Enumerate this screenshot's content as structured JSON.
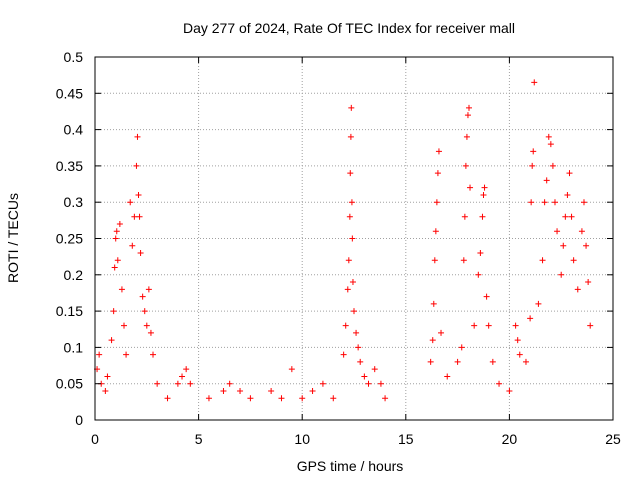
{
  "chart_data": {
    "type": "scatter",
    "title": "Day 277 of 2024, Rate Of TEC Index for receiver mall",
    "xlabel": "GPS time / hours",
    "ylabel": "ROTI / TECUs",
    "xlim": [
      0,
      25
    ],
    "ylim": [
      0,
      0.5
    ],
    "x_ticks": [
      0,
      5,
      10,
      15,
      20,
      25
    ],
    "x_tick_labels": [
      "0",
      "5",
      "10",
      "15",
      "20",
      "25"
    ],
    "y_ticks": [
      0,
      0.05,
      0.1,
      0.15,
      0.2,
      0.25,
      0.3,
      0.35,
      0.4,
      0.45,
      0.5
    ],
    "y_tick_labels": [
      "0",
      "0.05",
      "0.1",
      "0.15",
      "0.2",
      "0.25",
      "0.3",
      "0.35",
      "0.4",
      "0.45",
      "0.5"
    ],
    "grid": true,
    "marker": "+",
    "color": "#ff0000",
    "series": [
      {
        "name": "ROTI",
        "points": [
          [
            0.1,
            0.07
          ],
          [
            0.2,
            0.09
          ],
          [
            0.3,
            0.05
          ],
          [
            0.5,
            0.04
          ],
          [
            0.6,
            0.06
          ],
          [
            0.8,
            0.11
          ],
          [
            0.9,
            0.15
          ],
          [
            0.95,
            0.21
          ],
          [
            1.0,
            0.25
          ],
          [
            1.05,
            0.26
          ],
          [
            1.1,
            0.22
          ],
          [
            1.2,
            0.27
          ],
          [
            1.3,
            0.18
          ],
          [
            1.4,
            0.13
          ],
          [
            1.5,
            0.09
          ],
          [
            1.7,
            0.3
          ],
          [
            1.8,
            0.24
          ],
          [
            1.9,
            0.28
          ],
          [
            2.0,
            0.35
          ],
          [
            2.05,
            0.39
          ],
          [
            2.1,
            0.31
          ],
          [
            2.15,
            0.28
          ],
          [
            2.2,
            0.23
          ],
          [
            2.3,
            0.17
          ],
          [
            2.4,
            0.15
          ],
          [
            2.5,
            0.13
          ],
          [
            2.6,
            0.18
          ],
          [
            2.7,
            0.12
          ],
          [
            2.8,
            0.09
          ],
          [
            3.0,
            0.05
          ],
          [
            3.5,
            0.03
          ],
          [
            4.0,
            0.05
          ],
          [
            4.2,
            0.06
          ],
          [
            4.4,
            0.07
          ],
          [
            4.6,
            0.05
          ],
          [
            5.5,
            0.03
          ],
          [
            6.2,
            0.04
          ],
          [
            6.5,
            0.05
          ],
          [
            7.0,
            0.04
          ],
          [
            7.5,
            0.03
          ],
          [
            8.5,
            0.04
          ],
          [
            9.0,
            0.03
          ],
          [
            9.5,
            0.07
          ],
          [
            10.0,
            0.03
          ],
          [
            10.5,
            0.04
          ],
          [
            11.0,
            0.05
          ],
          [
            11.5,
            0.03
          ],
          [
            12.0,
            0.09
          ],
          [
            12.1,
            0.13
          ],
          [
            12.2,
            0.18
          ],
          [
            12.25,
            0.22
          ],
          [
            12.3,
            0.28
          ],
          [
            12.32,
            0.34
          ],
          [
            12.35,
            0.39
          ],
          [
            12.37,
            0.43
          ],
          [
            12.4,
            0.3
          ],
          [
            12.42,
            0.25
          ],
          [
            12.45,
            0.19
          ],
          [
            12.5,
            0.15
          ],
          [
            12.6,
            0.12
          ],
          [
            12.7,
            0.1
          ],
          [
            12.8,
            0.08
          ],
          [
            13.0,
            0.06
          ],
          [
            13.2,
            0.05
          ],
          [
            13.5,
            0.07
          ],
          [
            13.8,
            0.05
          ],
          [
            14.0,
            0.03
          ],
          [
            16.2,
            0.08
          ],
          [
            16.3,
            0.11
          ],
          [
            16.35,
            0.16
          ],
          [
            16.4,
            0.22
          ],
          [
            16.45,
            0.26
          ],
          [
            16.5,
            0.3
          ],
          [
            16.55,
            0.34
          ],
          [
            16.6,
            0.37
          ],
          [
            16.7,
            0.12
          ],
          [
            17.0,
            0.06
          ],
          [
            17.5,
            0.08
          ],
          [
            17.7,
            0.1
          ],
          [
            17.8,
            0.22
          ],
          [
            17.85,
            0.28
          ],
          [
            17.9,
            0.35
          ],
          [
            17.95,
            0.39
          ],
          [
            18.0,
            0.42
          ],
          [
            18.05,
            0.43
          ],
          [
            18.1,
            0.32
          ],
          [
            18.3,
            0.13
          ],
          [
            18.5,
            0.2
          ],
          [
            18.6,
            0.23
          ],
          [
            18.7,
            0.28
          ],
          [
            18.75,
            0.31
          ],
          [
            18.8,
            0.32
          ],
          [
            18.9,
            0.17
          ],
          [
            19.0,
            0.13
          ],
          [
            19.2,
            0.08
          ],
          [
            19.5,
            0.05
          ],
          [
            20.0,
            0.04
          ],
          [
            20.3,
            0.13
          ],
          [
            20.4,
            0.11
          ],
          [
            20.5,
            0.09
          ],
          [
            20.8,
            0.08
          ],
          [
            21.0,
            0.14
          ],
          [
            21.05,
            0.3
          ],
          [
            21.1,
            0.35
          ],
          [
            21.15,
            0.37
          ],
          [
            21.2,
            0.465
          ],
          [
            21.4,
            0.16
          ],
          [
            21.6,
            0.22
          ],
          [
            21.7,
            0.3
          ],
          [
            21.8,
            0.33
          ],
          [
            21.9,
            0.39
          ],
          [
            22.0,
            0.38
          ],
          [
            22.1,
            0.35
          ],
          [
            22.2,
            0.3
          ],
          [
            22.3,
            0.26
          ],
          [
            22.5,
            0.2
          ],
          [
            22.6,
            0.24
          ],
          [
            22.7,
            0.28
          ],
          [
            22.8,
            0.31
          ],
          [
            22.9,
            0.34
          ],
          [
            23.0,
            0.28
          ],
          [
            23.1,
            0.22
          ],
          [
            23.3,
            0.18
          ],
          [
            23.5,
            0.26
          ],
          [
            23.6,
            0.3
          ],
          [
            23.7,
            0.24
          ],
          [
            23.8,
            0.19
          ],
          [
            23.9,
            0.13
          ]
        ]
      }
    ]
  }
}
